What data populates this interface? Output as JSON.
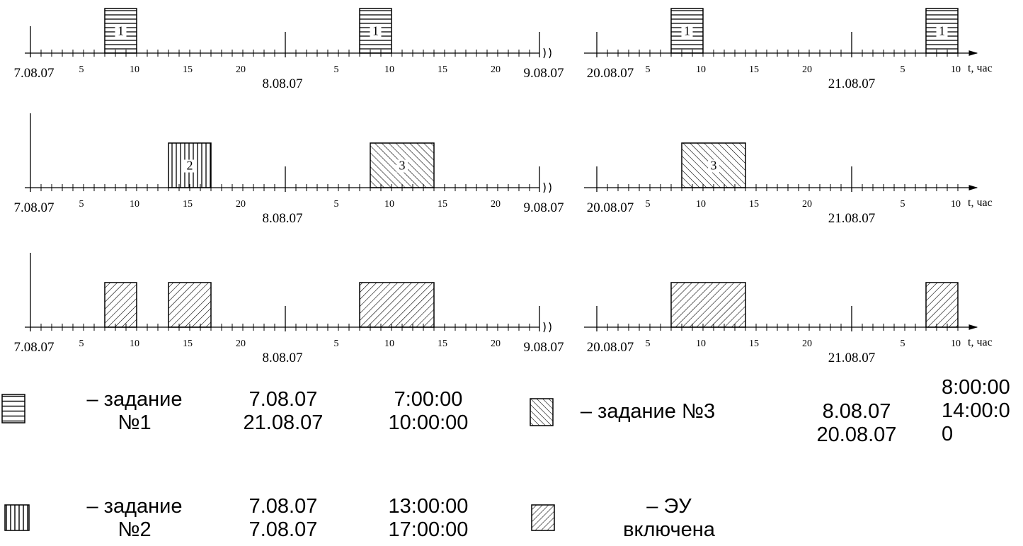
{
  "units": {
    "axis_label": "t, час"
  },
  "axes": [
    {
      "name": "jobs-1",
      "day_labels": [
        "7.08.07",
        "8.08.07",
        "9.08.07",
        "20.08.07",
        "21.08.07"
      ],
      "hour_ticks": [
        "5",
        "10",
        "15",
        "20"
      ],
      "hour_ticks_last_day": [
        "5",
        "10"
      ],
      "blocks": [
        {
          "day": 0,
          "start": 7,
          "end": 10,
          "pattern": "horizontal",
          "label": "1"
        },
        {
          "day": 1,
          "start": 7,
          "end": 10,
          "pattern": "horizontal",
          "label": "1"
        },
        {
          "day": 2,
          "start": 7,
          "end": 10,
          "pattern": "horizontal",
          "label": "1"
        },
        {
          "day": 3,
          "start": 7,
          "end": 10,
          "pattern": "horizontal",
          "label": "1"
        }
      ]
    },
    {
      "name": "jobs-2-3",
      "day_labels": [
        "7.08.07",
        "8.08.07",
        "9.08.07",
        "20.08.07",
        "21.08.07"
      ],
      "hour_ticks": [
        "5",
        "10",
        "15",
        "20"
      ],
      "hour_ticks_last_day": [
        "5",
        "10"
      ],
      "blocks": [
        {
          "day": 0,
          "start": 13,
          "end": 17,
          "pattern": "vertical",
          "label": "2"
        },
        {
          "day": 1,
          "start": 8,
          "end": 14,
          "pattern": "backslash",
          "label": "3"
        },
        {
          "day": 2,
          "start": 8,
          "end": 14,
          "pattern": "backslash",
          "label": "3"
        }
      ]
    },
    {
      "name": "device-on",
      "day_labels": [
        "7.08.07",
        "8.08.07",
        "9.08.07",
        "20.08.07",
        "21.08.07"
      ],
      "hour_ticks": [
        "5",
        "10",
        "15",
        "20"
      ],
      "hour_ticks_last_day": [
        "5",
        "10"
      ],
      "blocks": [
        {
          "day": 0,
          "start": 7,
          "end": 10,
          "pattern": "slash",
          "label": ""
        },
        {
          "day": 0,
          "start": 13,
          "end": 17,
          "pattern": "slash",
          "label": ""
        },
        {
          "day": 1,
          "start": 7,
          "end": 14,
          "pattern": "slash",
          "label": ""
        },
        {
          "day": 2,
          "start": 7,
          "end": 14,
          "pattern": "slash",
          "label": ""
        },
        {
          "day": 3,
          "start": 7,
          "end": 10,
          "pattern": "slash",
          "label": ""
        }
      ]
    }
  ],
  "legend": [
    {
      "pattern": "horizontal",
      "name": "– задание\n№1",
      "dates": "7.08.07\n21.08.07",
      "times": "7:00:00\n10:00:00"
    },
    {
      "pattern": "backslash",
      "name": "– задание №3",
      "dates": "8.08.07\n20.08.07",
      "times": "8:00:00\n14:00:0\n0"
    },
    {
      "pattern": "vertical",
      "name": "– задание\n№2",
      "dates": "7.08.07\n7.08.07",
      "times": "13:00:00\n17:00:00"
    },
    {
      "pattern": "slash",
      "name": "– ЭУ\nвключена",
      "dates": "",
      "times": ""
    }
  ]
}
